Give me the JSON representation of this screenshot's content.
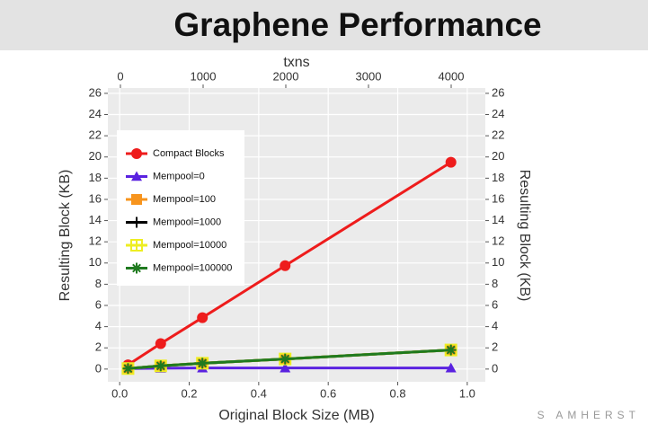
{
  "header": {
    "title": "Graphene Performance"
  },
  "footer": {
    "watermark": "S AMHERST"
  },
  "chart_data": {
    "type": "line",
    "xlabel": "Original Block Size (MB)",
    "x2label": "txns",
    "ylabel": "Resulting Block (KB)",
    "y2label": "Resulting Block (KB)",
    "x": [
      0.024,
      0.118,
      0.238,
      0.476,
      0.953
    ],
    "xlim": [
      -0.034,
      1.052
    ],
    "xticks": [
      {
        "value": 0,
        "label": "0.0"
      },
      0.2,
      0.4,
      0.6,
      0.8,
      {
        "value": 1,
        "label": "1.0"
      }
    ],
    "x2lim": [
      -152,
      4413
    ],
    "x2ticks": [
      0,
      1000,
      2000,
      3000,
      4000
    ],
    "ylim": [
      -1.2,
      26.5
    ],
    "yticks": [
      0,
      2,
      4,
      6,
      8,
      10,
      12,
      14,
      16,
      18,
      20,
      22,
      24,
      26
    ],
    "grid": true,
    "legend": "upper left",
    "series": [
      {
        "name": "Compact Blocks",
        "color": "#ee1c1c",
        "marker": "circle",
        "values": [
          0.4,
          2.4,
          4.85,
          9.75,
          19.5
        ]
      },
      {
        "name": "Mempool=0",
        "color": "#5a22e0",
        "marker": "triangle",
        "values": [
          0.05,
          0.08,
          0.1,
          0.1,
          0.1
        ]
      },
      {
        "name": "Mempool=100",
        "color": "#f7941d",
        "marker": "square",
        "values": [
          0.05,
          0.3,
          0.55,
          0.95,
          1.8
        ]
      },
      {
        "name": "Mempool=1000",
        "color": "#000000",
        "marker": "plus",
        "values": [
          0.05,
          0.3,
          0.55,
          0.95,
          1.8
        ]
      },
      {
        "name": "Mempool=10000",
        "color": "#eeee22",
        "marker": "crossbox",
        "values": [
          0.05,
          0.3,
          0.55,
          0.95,
          1.8
        ]
      },
      {
        "name": "Mempool=100000",
        "color": "#1f7a1f",
        "marker": "asterisk",
        "values": [
          0.05,
          0.3,
          0.55,
          0.95,
          1.8
        ]
      }
    ]
  }
}
